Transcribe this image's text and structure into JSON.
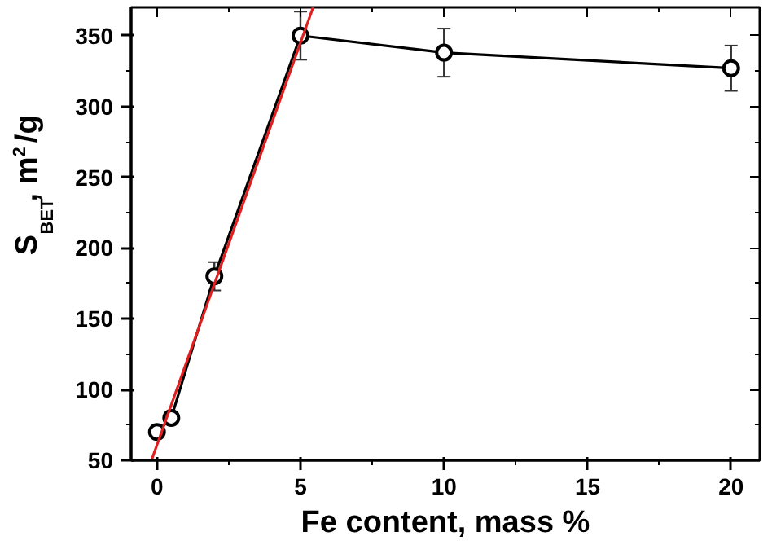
{
  "chart_data": {
    "type": "line",
    "xlabel": "Fe content, mass %",
    "ylabel": "S$_{BET}$, m$^{2}$/g",
    "xlim": [
      -0.9,
      21
    ],
    "ylim": [
      50,
      370
    ],
    "xticks": [
      0,
      5,
      10,
      15,
      20
    ],
    "yticks": [
      50,
      100,
      150,
      200,
      250,
      300,
      350
    ],
    "grid": false,
    "series": [
      {
        "color": "#000000",
        "marker": "circle",
        "x": [
          0,
          0.5,
          2,
          5,
          10,
          20
        ],
        "values": [
          70,
          80,
          180,
          350,
          338,
          327
        ],
        "errors": [
          null,
          null,
          10,
          17,
          17,
          16
        ]
      },
      {
        "color": "#e02020",
        "marker": "none",
        "x": [
          -0.19,
          5.44
        ],
        "values": [
          50,
          370
        ]
      }
    ]
  }
}
